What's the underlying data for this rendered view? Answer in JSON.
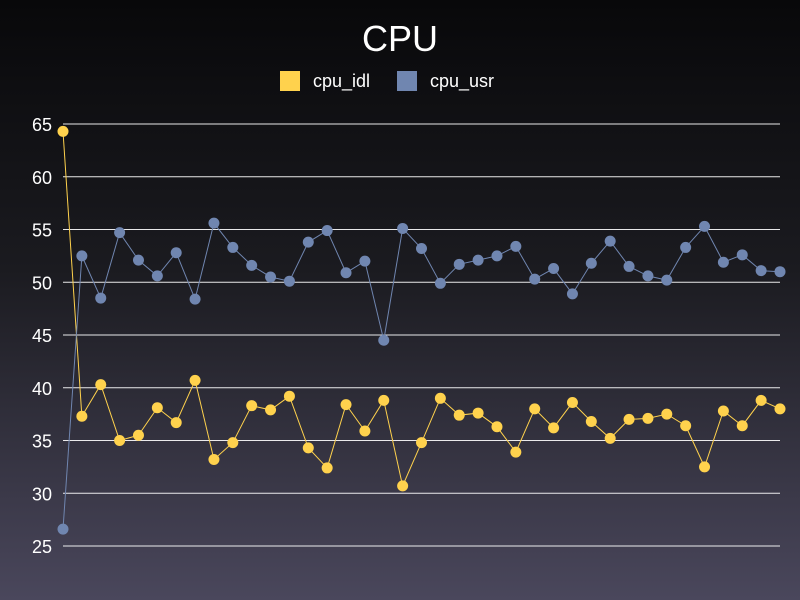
{
  "chart_data": {
    "type": "line",
    "title": "CPU",
    "xlabel": "",
    "ylabel": "",
    "ylim": [
      25,
      65
    ],
    "yticks": [
      25,
      30,
      35,
      40,
      45,
      50,
      55,
      60,
      65
    ],
    "grid": true,
    "legend_position": "top",
    "x": [
      1,
      2,
      3,
      4,
      5,
      6,
      7,
      8,
      9,
      10,
      11,
      12,
      13,
      14,
      15,
      16,
      17,
      18,
      19,
      20,
      21,
      22,
      23,
      24,
      25,
      26,
      27,
      28,
      29,
      30,
      31,
      32,
      33,
      34,
      35,
      36,
      37,
      38,
      39
    ],
    "series": [
      {
        "name": "cpu_idl",
        "color": "#ffd24d",
        "values": [
          64.3,
          37.3,
          40.3,
          35.0,
          35.5,
          38.1,
          36.7,
          40.7,
          33.2,
          34.8,
          38.3,
          37.9,
          39.2,
          34.3,
          32.4,
          38.4,
          35.9,
          38.8,
          30.7,
          34.8,
          39.0,
          37.4,
          37.6,
          36.3,
          33.9,
          38.0,
          36.2,
          38.6,
          36.8,
          35.2,
          37.0,
          37.1,
          37.5,
          36.4,
          32.5,
          37.8,
          36.4,
          38.8,
          38.0
        ]
      },
      {
        "name": "cpu_usr",
        "color": "#7086b0",
        "values": [
          26.6,
          52.5,
          48.5,
          54.7,
          52.1,
          50.6,
          52.8,
          48.4,
          55.6,
          53.3,
          51.6,
          50.5,
          50.1,
          53.8,
          54.9,
          50.9,
          52.0,
          44.5,
          55.1,
          53.2,
          49.9,
          51.7,
          52.1,
          52.5,
          53.4,
          50.3,
          51.3,
          48.9,
          51.8,
          53.9,
          51.5,
          50.6,
          50.2,
          53.3,
          55.3,
          51.9,
          52.6,
          51.1,
          51.0
        ]
      }
    ]
  }
}
